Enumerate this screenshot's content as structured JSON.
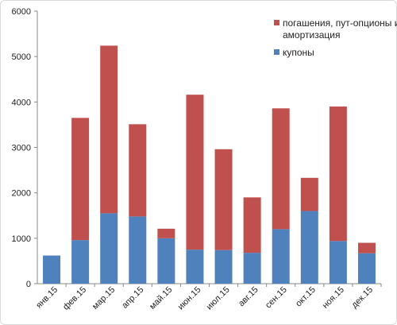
{
  "chart_data": {
    "type": "bar",
    "stacked": true,
    "categories": [
      "янв.15",
      "фев.15",
      "мар.15",
      "апр.15",
      "май.15",
      "июн.15",
      "июл.15",
      "авг.15",
      "сен.15",
      "окт.15",
      "ноя.15",
      "дек.15"
    ],
    "series": [
      {
        "name": "купоны",
        "color": "#4f81bd",
        "values": [
          620,
          960,
          1550,
          1480,
          1000,
          750,
          740,
          680,
          1200,
          1600,
          940,
          670
        ]
      },
      {
        "name": "погашения, пут-опционы и амортизация",
        "color": "#c0504d",
        "values": [
          0,
          2690,
          3690,
          2030,
          210,
          3410,
          2220,
          1220,
          2660,
          730,
          2960,
          230
        ]
      }
    ],
    "ylim": [
      0,
      6000
    ],
    "yticks": [
      "0",
      "1000",
      "2000",
      "3000",
      "4000",
      "5000",
      "6000"
    ],
    "grid": false,
    "legend_position": "top-right",
    "legend": {
      "item1_line1": "погашения, пут-опционы и",
      "item1_line2": "амортизация",
      "item2": "купоны"
    }
  }
}
